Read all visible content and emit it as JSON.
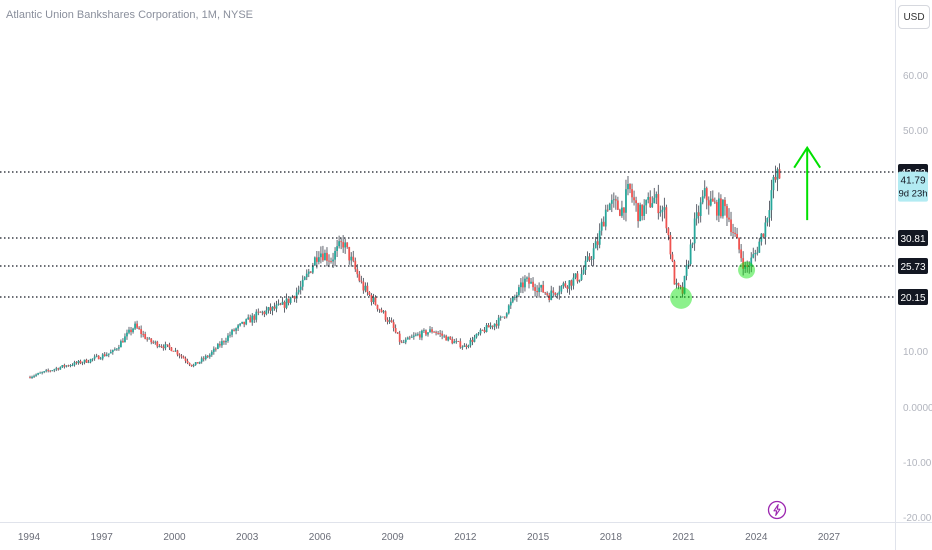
{
  "header": {
    "title": "Atlantic Union Bankshares Corporation, 1M, NYSE",
    "currency_button": "USD"
  },
  "countdown_label": "9d 23h",
  "colors": {
    "up": "#26a69a",
    "down": "#ef5350",
    "annotation": "#00e000",
    "badge_bg": "#131722",
    "price_badge_bg": "#b2ebf2",
    "grid_text": "#b2b5be",
    "alert_icon": "#9c27b0"
  },
  "icons": {
    "alert": "lightning-alert-icon"
  },
  "chart_data": {
    "type": "candlestick",
    "title": "Atlantic Union Bankshares Corporation, 1M, NYSE",
    "currency": "USD",
    "y_scale": "log",
    "ylim": [
      -20,
      68
    ],
    "y_ticks": [
      60.0,
      50.0,
      10.0,
      0.0,
      -10.0,
      -20.0
    ],
    "y_tick_labels": [
      "60.00",
      "50.00",
      "10.00",
      "0.0000",
      "-10.00",
      "-20.00"
    ],
    "x_ticks": [
      "1994",
      "1997",
      "2000",
      "2003",
      "2006",
      "2009",
      "2012",
      "2015",
      "2018",
      "2021",
      "2024",
      "2027"
    ],
    "last_price": 41.79,
    "price_path": [
      [
        1994.0,
        5.5
      ],
      [
        1995.5,
        7.5
      ],
      [
        1996.5,
        8.5
      ],
      [
        1997.5,
        10.0
      ],
      [
        1998.4,
        14.8
      ],
      [
        1999.0,
        12.0
      ],
      [
        2000.0,
        10.5
      ],
      [
        2000.8,
        7.5
      ],
      [
        2001.5,
        9.5
      ],
      [
        2002.5,
        14.0
      ],
      [
        2003.5,
        17.0
      ],
      [
        2004.5,
        18.5
      ],
      [
        2005.3,
        22.0
      ],
      [
        2006.0,
        28.5
      ],
      [
        2006.5,
        27.0
      ],
      [
        2007.0,
        30.0
      ],
      [
        2007.8,
        22.0
      ],
      [
        2008.5,
        18.0
      ],
      [
        2009.0,
        15.0
      ],
      [
        2009.4,
        11.5
      ],
      [
        2010.0,
        13.0
      ],
      [
        2010.7,
        14.0
      ],
      [
        2011.5,
        12.0
      ],
      [
        2012.0,
        11.0
      ],
      [
        2012.8,
        14.0
      ],
      [
        2013.5,
        16.0
      ],
      [
        2014.5,
        23.0
      ],
      [
        2015.0,
        22.0
      ],
      [
        2015.5,
        20.5
      ],
      [
        2016.0,
        22.0
      ],
      [
        2016.8,
        24.0
      ],
      [
        2017.5,
        30.0
      ],
      [
        2017.9,
        37.0
      ],
      [
        2018.5,
        36.0
      ],
      [
        2018.8,
        39.5
      ],
      [
        2019.2,
        35.0
      ],
      [
        2019.8,
        38.0
      ],
      [
        2020.3,
        35.0
      ],
      [
        2020.7,
        22.0
      ],
      [
        2021.0,
        21.0
      ],
      [
        2021.5,
        33.0
      ],
      [
        2021.9,
        38.5
      ],
      [
        2022.3,
        36.5
      ],
      [
        2022.8,
        36.0
      ],
      [
        2023.2,
        30.5
      ],
      [
        2023.6,
        25.0
      ],
      [
        2024.0,
        28.0
      ],
      [
        2024.4,
        33.0
      ],
      [
        2024.7,
        40.0
      ],
      [
        2024.9,
        41.79
      ]
    ],
    "horizontal_levels": [
      {
        "value": 42.62,
        "label": "42.62"
      },
      {
        "value": 30.81,
        "label": "30.81"
      },
      {
        "value": 25.73,
        "label": "25.73"
      },
      {
        "value": 20.15,
        "label": "20.15"
      }
    ],
    "annotations": [
      {
        "type": "circle",
        "x": 2020.9,
        "y": 20.0
      },
      {
        "type": "circle",
        "x": 2023.6,
        "y": 25.0
      },
      {
        "type": "arrow-up",
        "x": 2026.1,
        "y_from": 34.0,
        "y_to": 47.0
      }
    ]
  }
}
